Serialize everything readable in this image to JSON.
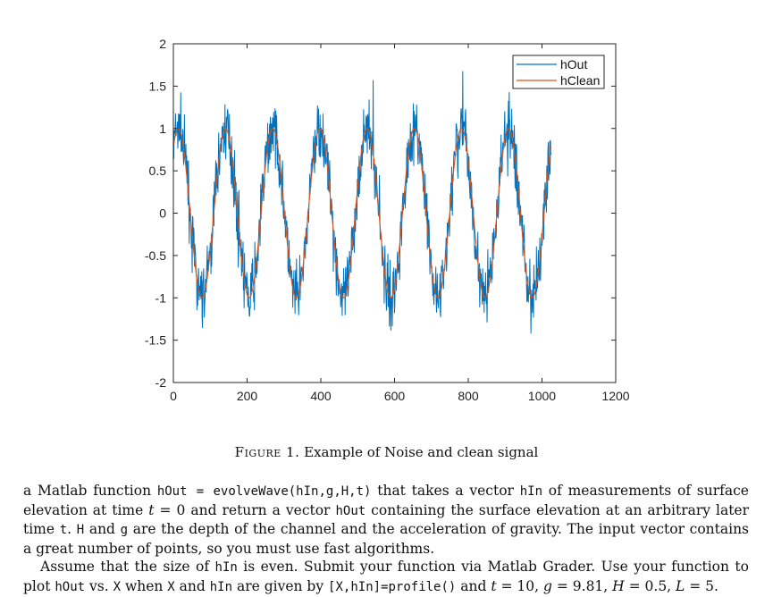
{
  "chart_data": {
    "type": "line",
    "xlim": [
      0,
      1200
    ],
    "ylim": [
      -2,
      2
    ],
    "xticks": [
      "0",
      "200",
      "400",
      "600",
      "800",
      "1000",
      "1200"
    ],
    "yticks": [
      "2",
      "1.5",
      "1",
      "0.5",
      "0",
      "-0.5",
      "-1",
      "-1.5",
      "-2"
    ],
    "grid": false,
    "legend_position": "top-right",
    "n_points": 1024,
    "wave_period": 128,
    "series": [
      {
        "name": "hOut",
        "color": "#0072bd",
        "amplitude": 1.0,
        "noise_amplitude": 0.25
      },
      {
        "name": "hClean",
        "color": "#d95319",
        "amplitude": 1.0,
        "noise_amplitude": 0
      }
    ]
  },
  "caption": {
    "label": "Figure 1.",
    "text": "Example of Noise and clean signal"
  },
  "paragraph1": {
    "t1": "a Matlab function ",
    "c1": "hOut = evolveWave(hIn,g,H,t)",
    "t2": " that takes a vector ",
    "c2": "hIn",
    "t3": " of measurements of surface elevation at time ",
    "m1": "t",
    "t4": " = 0 and return a vector ",
    "c3": "hOut",
    "t5": " containing the surface elevation at an arbitrary later time ",
    "c4": "t",
    "t6": ". ",
    "c5": "H",
    "t7": " and ",
    "c6": "g",
    "t8": " are the depth of the channel and the acceleration of gravity. The input vector contains a great number of points, so you must use fast algorithms."
  },
  "paragraph2": {
    "t1": "Assume that the size of ",
    "c1": "hIn",
    "t2": " is even. Submit your function via Matlab Grader. Use your function to plot ",
    "c2": "hOut",
    "t3": " vs. ",
    "c3": "X",
    "t4": " when ",
    "c4": "X",
    "t5": " and ",
    "c5": "hIn",
    "t6": " are given by ",
    "c6": "[X,hIn]=profile()",
    "t7": " and ",
    "m1": "t",
    "t8": " = 10, ",
    "m2": "g",
    "t9": " = 9.81, ",
    "m3": "H",
    "t10": " = 0.5, ",
    "m4": "L",
    "t11": " = 5."
  }
}
